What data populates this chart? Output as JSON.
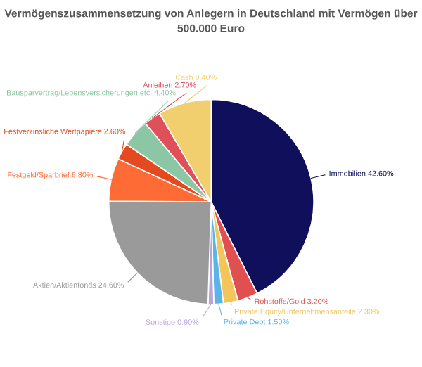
{
  "chart_data": {
    "type": "pie",
    "title": "Vermögenszusammensetzung von Anlegern in Deutschland mit Vermögen über 500.000 Euro",
    "categories": [
      "Immobilien",
      "Rohstoffe/Gold",
      "Private Equity/Unternehmensanteile",
      "Private Debt",
      "Sonstige",
      "Aktien/Aktienfonds",
      "Festgeld/Sparbrief",
      "Festverzinsliche Wertpapiere",
      "Bausparvertrag/Lebensversicherungen etc.",
      "Anleihen",
      "Cash"
    ],
    "values": [
      42.6,
      3.2,
      2.3,
      1.5,
      0.9,
      24.6,
      6.8,
      2.6,
      4.4,
      2.7,
      8.4
    ],
    "colors": [
      "#0f0f5c",
      "#e05050",
      "#f2c65a",
      "#5ab4e8",
      "#b9a5d8",
      "#9a9a9a",
      "#ff6b35",
      "#e4491f",
      "#8cc7a5",
      "#e0505a",
      "#f2cf6e"
    ],
    "value_labels": [
      "42.60%",
      "3.20%",
      "2.30%",
      "1.50%",
      "0.90%",
      "24.60%",
      "6.80%",
      "2.60%",
      "4.40%",
      "2.70%",
      "8.40%"
    ]
  }
}
